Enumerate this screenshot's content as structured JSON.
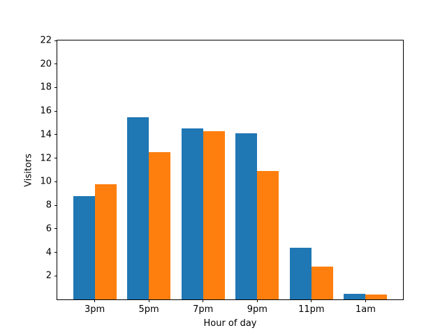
{
  "chart_data": {
    "type": "bar",
    "title": "",
    "xlabel": "Hour of day",
    "ylabel": "Visitors",
    "categories": [
      "3pm",
      "5pm",
      "7pm",
      "9pm",
      "11pm",
      "1am"
    ],
    "x": [
      0,
      1,
      2,
      3,
      4,
      5
    ],
    "series": [
      {
        "name": "blue-bars",
        "color": "#1f77b4",
        "values": [
          8.8,
          15.5,
          14.5,
          14.1,
          4.4,
          0.5
        ]
      },
      {
        "name": "orange-bars",
        "color": "#ff7f0e",
        "values": [
          9.8,
          12.5,
          14.3,
          10.9,
          2.8,
          0.4
        ]
      }
    ],
    "bar_width": 0.4,
    "ylim": [
      0,
      22
    ],
    "xlim": [
      -0.69,
      5.69
    ],
    "yticks": [
      2,
      4,
      6,
      8,
      10,
      12,
      14,
      16,
      18,
      20,
      22
    ],
    "grid": false,
    "legend": null,
    "background_color": "#ffffff",
    "spine_color": "#000000",
    "text_color": "#000000"
  }
}
